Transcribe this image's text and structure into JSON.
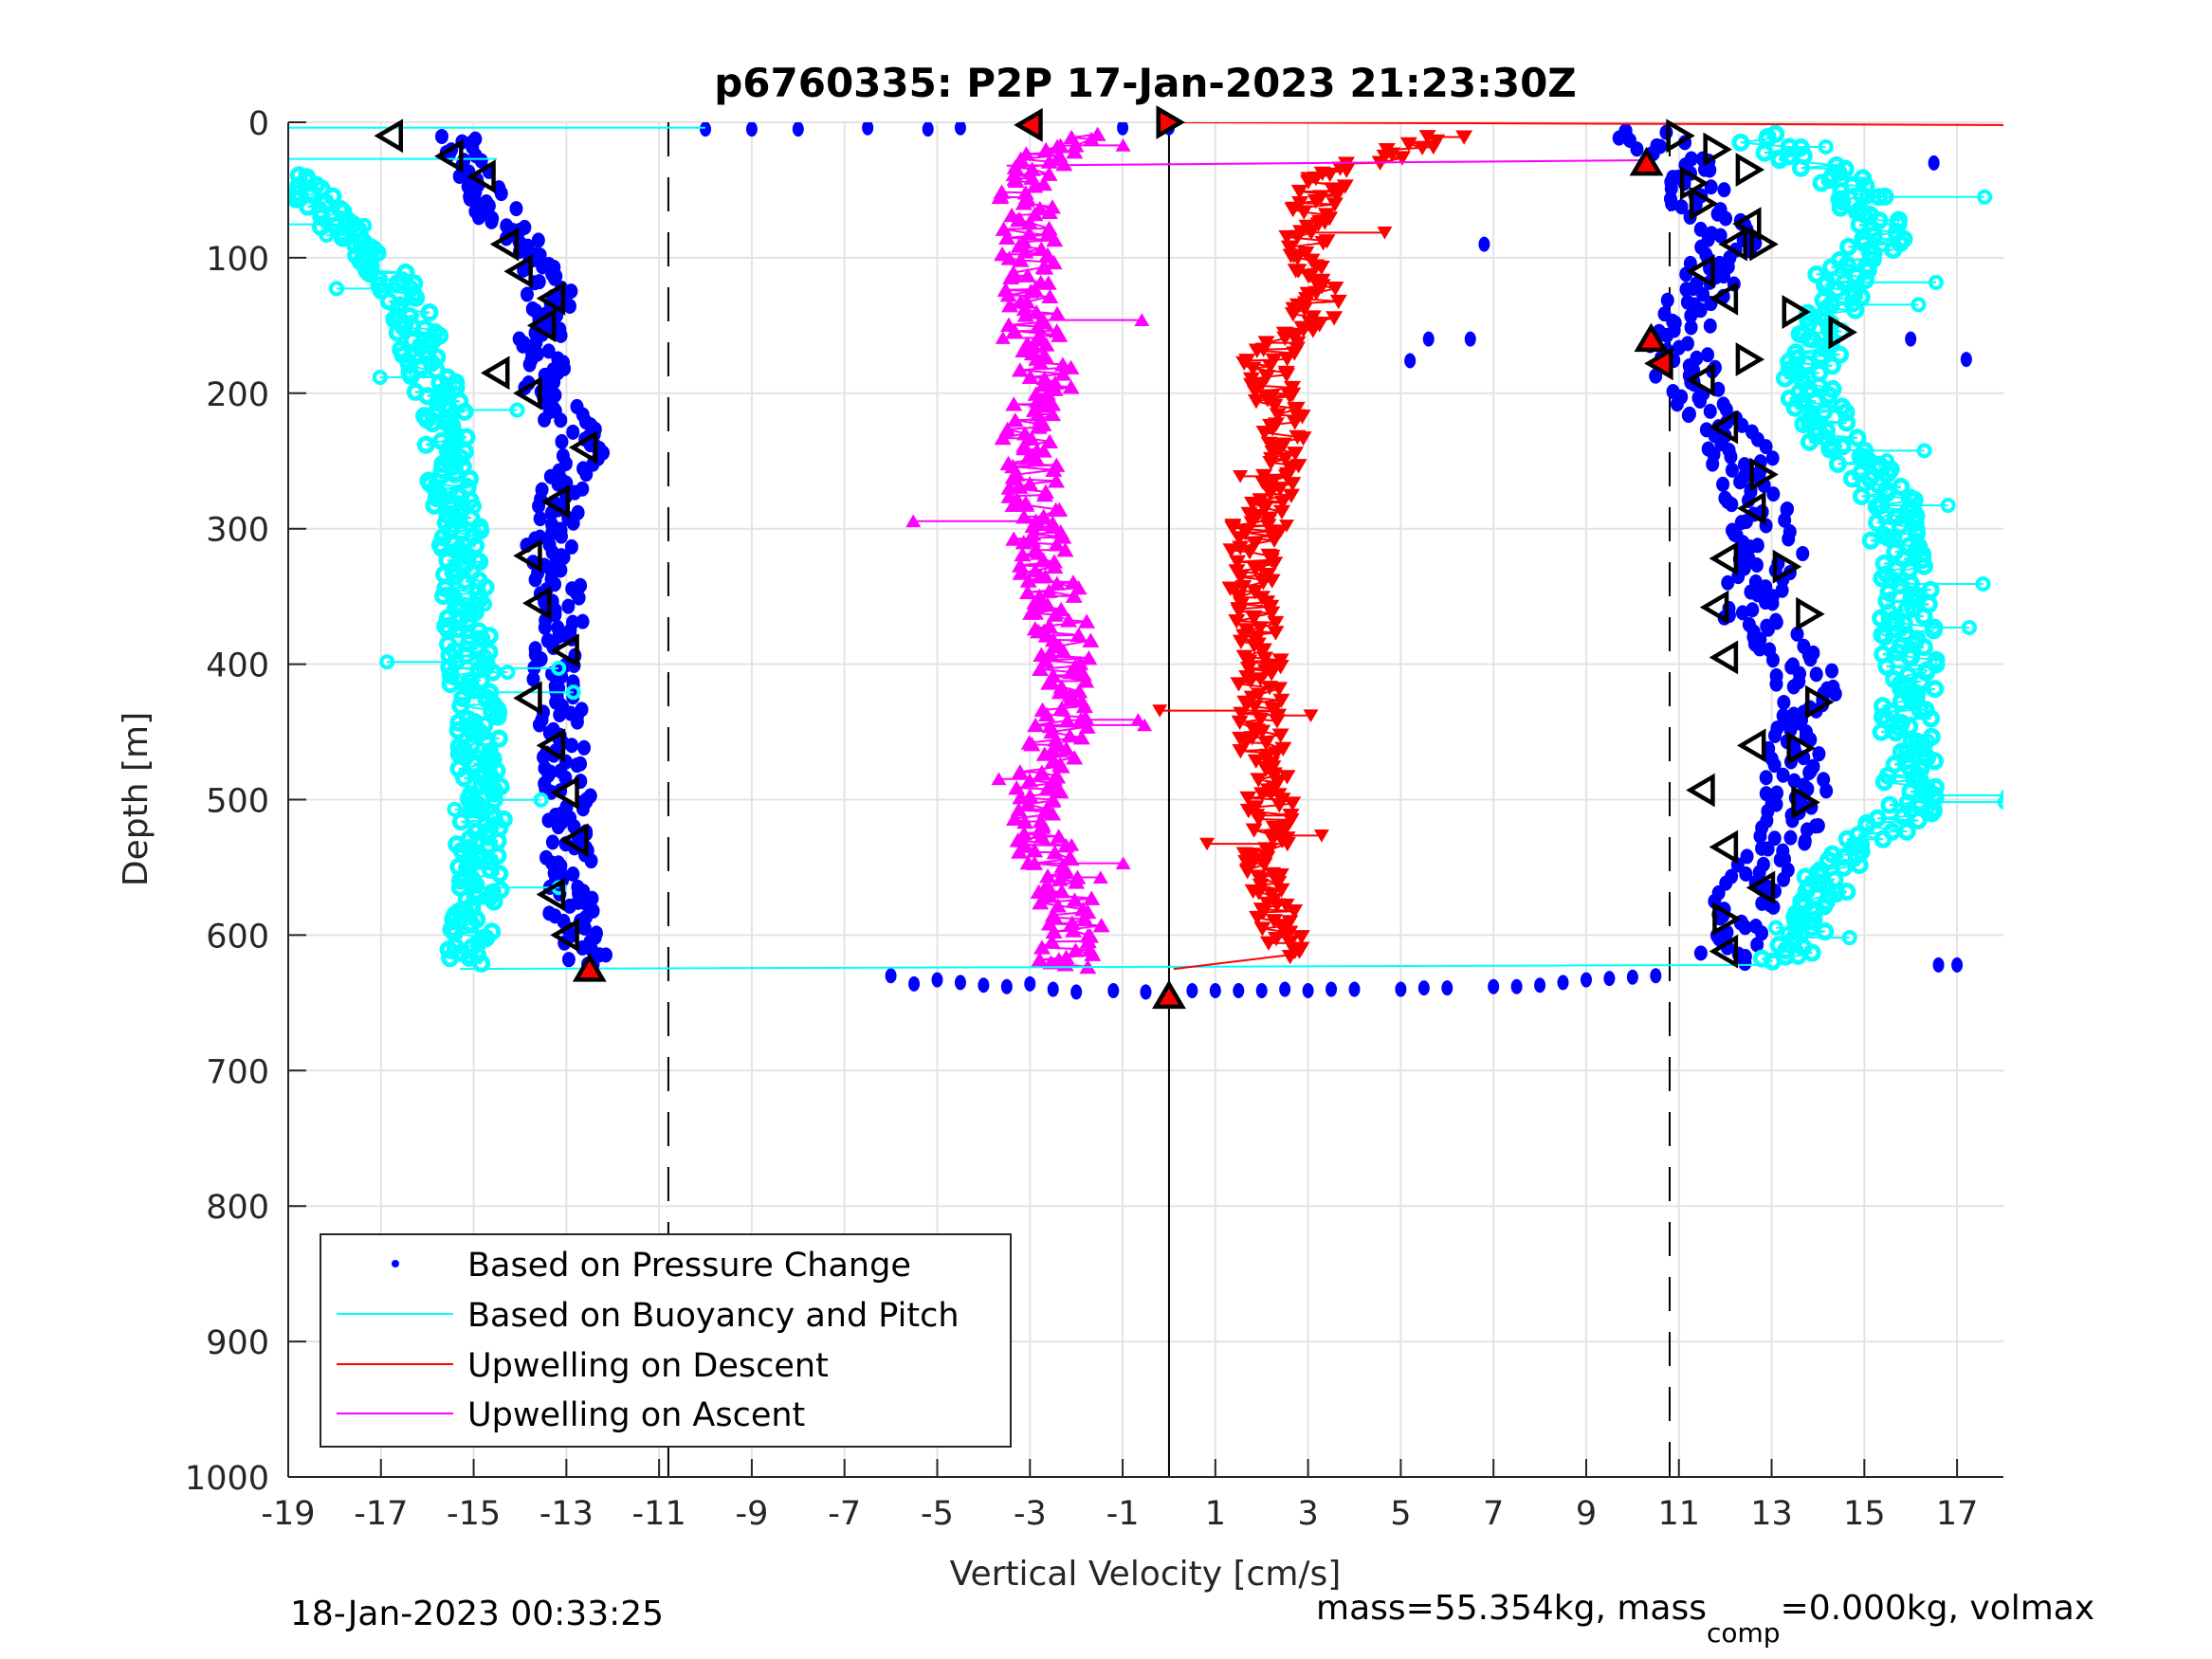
{
  "chart_data": {
    "type": "scatter",
    "title": "p6760335: P2P 17-Jan-2023 21:23:30Z",
    "xlabel": "Vertical Velocity [cm/s]",
    "ylabel": "Depth [m]",
    "xlim": [
      -19,
      18
    ],
    "ylim": [
      0,
      1000
    ],
    "y_reversed": true,
    "grid": true,
    "xticks": [
      -19,
      -17,
      -15,
      -13,
      -11,
      -9,
      -7,
      -5,
      -3,
      -1,
      1,
      3,
      5,
      7,
      9,
      11,
      13,
      15,
      17
    ],
    "yticks": [
      0,
      100,
      200,
      300,
      400,
      500,
      600,
      700,
      800,
      900,
      1000
    ],
    "reference_lines": [
      {
        "name": "zero",
        "x": 0,
        "style": "solid"
      },
      {
        "name": "descent-threshold",
        "x": -10.8,
        "style": "dashed"
      },
      {
        "name": "ascent-threshold",
        "x": 10.8,
        "style": "dashed"
      }
    ],
    "legend": {
      "placement": "bottom-left",
      "entries": [
        {
          "label": "Based on Pressure Change",
          "color": "#0000ff",
          "marker": "dot"
        },
        {
          "label": "Based on Buoyancy and Pitch",
          "color": "#00ffff",
          "marker": "line"
        },
        {
          "label": "Upwelling on Descent",
          "color": "#ff0000",
          "marker": "line"
        },
        {
          "label": "Upwelling on Ascent",
          "color": "#ff00ff",
          "marker": "line"
        }
      ]
    },
    "series": [
      {
        "name": "Pressure Change (descent)",
        "color": "#0000ff",
        "marker": "dot",
        "profile": [
          [
            10,
            -15.5
          ],
          [
            50,
            -14.8
          ],
          [
            90,
            -14.0
          ],
          [
            130,
            -13.3
          ],
          [
            170,
            -13.6
          ],
          [
            200,
            -13.4
          ],
          [
            240,
            -12.6
          ],
          [
            280,
            -13.2
          ],
          [
            320,
            -13.4
          ],
          [
            360,
            -13.0
          ],
          [
            400,
            -13.3
          ],
          [
            440,
            -13.1
          ],
          [
            480,
            -13.0
          ],
          [
            520,
            -12.9
          ],
          [
            560,
            -13.0
          ],
          [
            600,
            -12.8
          ],
          [
            625,
            -12.4
          ]
        ],
        "spread": 0.5
      },
      {
        "name": "Buoyancy and Pitch (descent)",
        "color": "#00ffff",
        "marker": "circle-line",
        "profile": [
          [
            40,
            -18.8
          ],
          [
            70,
            -18.2
          ],
          [
            100,
            -17.0
          ],
          [
            140,
            -16.3
          ],
          [
            180,
            -16.0
          ],
          [
            220,
            -15.6
          ],
          [
            260,
            -15.5
          ],
          [
            300,
            -15.3
          ],
          [
            340,
            -15.2
          ],
          [
            380,
            -15.1
          ],
          [
            420,
            -15.0
          ],
          [
            460,
            -14.9
          ],
          [
            500,
            -14.8
          ],
          [
            540,
            -14.9
          ],
          [
            580,
            -14.9
          ],
          [
            620,
            -15.3
          ]
        ],
        "spread": 0.5
      },
      {
        "name": "Pressure Change (ascent)",
        "color": "#0000ff",
        "marker": "dot",
        "profile": [
          [
            620,
            12.0
          ],
          [
            590,
            12.3
          ],
          [
            560,
            12.6
          ],
          [
            520,
            13.5
          ],
          [
            480,
            13.5
          ],
          [
            440,
            13.8
          ],
          [
            400,
            13.6
          ],
          [
            360,
            12.5
          ],
          [
            320,
            13.0
          ],
          [
            280,
            12.6
          ],
          [
            240,
            12.3
          ],
          [
            200,
            11.3
          ],
          [
            170,
            11.0
          ],
          [
            130,
            11.4
          ],
          [
            90,
            12.0
          ],
          [
            60,
            11.5
          ],
          [
            30,
            11.2
          ],
          [
            5,
            10.0
          ]
        ],
        "spread": 0.7
      },
      {
        "name": "Buoyancy and Pitch (ascent)",
        "color": "#00ffff",
        "marker": "circle-line",
        "profile": [
          [
            620,
            13.3
          ],
          [
            580,
            14.0
          ],
          [
            540,
            14.5
          ],
          [
            510,
            16.0
          ],
          [
            470,
            16.0
          ],
          [
            430,
            15.9
          ],
          [
            390,
            16.0
          ],
          [
            350,
            15.9
          ],
          [
            310,
            15.6
          ],
          [
            270,
            15.5
          ],
          [
            230,
            14.2
          ],
          [
            190,
            13.8
          ],
          [
            150,
            14.2
          ],
          [
            110,
            14.5
          ],
          [
            80,
            15.5
          ],
          [
            40,
            14.5
          ],
          [
            10,
            12.5
          ]
        ],
        "spread": 0.6
      },
      {
        "name": "Upwelling on Descent",
        "color": "#ff0000",
        "marker": "triangle-down",
        "profile": [
          [
            10,
            6.0
          ],
          [
            40,
            3.5
          ],
          [
            70,
            3.0
          ],
          [
            100,
            3.0
          ],
          [
            140,
            3.2
          ],
          [
            180,
            2.0
          ],
          [
            220,
            2.5
          ],
          [
            260,
            2.4
          ],
          [
            300,
            1.8
          ],
          [
            340,
            1.8
          ],
          [
            380,
            2.0
          ],
          [
            420,
            2.0
          ],
          [
            460,
            2.0
          ],
          [
            500,
            2.2
          ],
          [
            540,
            2.1
          ],
          [
            580,
            2.3
          ],
          [
            615,
            2.5
          ]
        ],
        "spread": 0.5
      },
      {
        "name": "Upwelling on Ascent",
        "color": "#ff00ff",
        "marker": "triangle-up",
        "profile": [
          [
            625,
            -2.3
          ],
          [
            590,
            -2.0
          ],
          [
            550,
            -2.6
          ],
          [
            510,
            -2.8
          ],
          [
            470,
            -2.6
          ],
          [
            430,
            -2.2
          ],
          [
            390,
            -2.2
          ],
          [
            350,
            -2.5
          ],
          [
            310,
            -2.8
          ],
          [
            270,
            -2.9
          ],
          [
            230,
            -3.0
          ],
          [
            190,
            -2.6
          ],
          [
            150,
            -2.9
          ],
          [
            110,
            -3.0
          ],
          [
            70,
            -3.0
          ],
          [
            40,
            -3.2
          ],
          [
            10,
            -2.0
          ]
        ],
        "spread": 0.6
      },
      {
        "name": "Bottom turn (pressure change)",
        "color": "#0000ff",
        "marker": "dot",
        "points": [
          [
            -6.0,
            630
          ],
          [
            -5.5,
            636
          ],
          [
            -5.0,
            633
          ],
          [
            -4.5,
            635
          ],
          [
            -4.0,
            637
          ],
          [
            -3.5,
            638
          ],
          [
            -3.0,
            636
          ],
          [
            -2.5,
            640
          ],
          [
            -2.0,
            642
          ],
          [
            -1.2,
            641
          ],
          [
            -0.5,
            642
          ],
          [
            0.5,
            641
          ],
          [
            1.0,
            641
          ],
          [
            1.5,
            641
          ],
          [
            2.0,
            641
          ],
          [
            2.5,
            640
          ],
          [
            3.0,
            641
          ],
          [
            3.5,
            640
          ],
          [
            4.0,
            640
          ],
          [
            5.0,
            640
          ],
          [
            5.5,
            639
          ],
          [
            6.0,
            639
          ],
          [
            7.0,
            638
          ],
          [
            7.5,
            638
          ],
          [
            8.0,
            637
          ],
          [
            8.5,
            635
          ],
          [
            9.0,
            633
          ],
          [
            9.5,
            632
          ],
          [
            10.0,
            631
          ],
          [
            10.5,
            630
          ]
        ]
      },
      {
        "name": "Isolated pressure-change points",
        "color": "#0000ff",
        "marker": "dot",
        "points": [
          [
            -10.0,
            5
          ],
          [
            -9.0,
            5
          ],
          [
            -8.0,
            5
          ],
          [
            -6.5,
            4
          ],
          [
            -5.2,
            5
          ],
          [
            -4.5,
            4
          ],
          [
            -1.0,
            4
          ],
          [
            0.0,
            4
          ],
          [
            6.8,
            90
          ],
          [
            5.6,
            160
          ],
          [
            6.5,
            160
          ],
          [
            5.2,
            176
          ],
          [
            16.5,
            30
          ],
          [
            16.6,
            622
          ],
          [
            17.0,
            622
          ],
          [
            16.0,
            160
          ],
          [
            17.2,
            175
          ]
        ]
      }
    ],
    "markers": {
      "turn_markers_red": [
        [
          -3.0,
          2,
          "left"
        ],
        [
          0,
          0,
          "right"
        ],
        [
          10.3,
          30,
          "up"
        ],
        [
          10.4,
          160,
          "up"
        ],
        [
          10.6,
          178,
          "left"
        ],
        [
          -12.5,
          625,
          "up"
        ],
        [
          0,
          645,
          "up"
        ]
      ],
      "segment_markers_outline": [
        [
          -16.8,
          10,
          "left"
        ],
        [
          -15.5,
          25,
          "left"
        ],
        [
          -14.8,
          40,
          "left"
        ],
        [
          -14.3,
          90,
          "left"
        ],
        [
          -14.0,
          110,
          "left"
        ],
        [
          -13.3,
          130,
          "left"
        ],
        [
          -13.5,
          150,
          "left"
        ],
        [
          -14.5,
          185,
          "left"
        ],
        [
          -13.8,
          200,
          "left"
        ],
        [
          -12.6,
          240,
          "left"
        ],
        [
          -13.2,
          280,
          "left"
        ],
        [
          -13.8,
          320,
          "left"
        ],
        [
          -13.6,
          355,
          "left"
        ],
        [
          -13.0,
          390,
          "left"
        ],
        [
          -13.8,
          425,
          "left"
        ],
        [
          -13.3,
          460,
          "left"
        ],
        [
          -13.0,
          495,
          "left"
        ],
        [
          -12.8,
          530,
          "left"
        ],
        [
          -13.3,
          570,
          "left"
        ],
        [
          -13.0,
          600,
          "left"
        ],
        [
          11.0,
          10,
          "right"
        ],
        [
          11.8,
          20,
          "right"
        ],
        [
          12.5,
          35,
          "right"
        ],
        [
          11.3,
          45,
          "right"
        ],
        [
          11.5,
          60,
          "right"
        ],
        [
          12.5,
          75,
          "left"
        ],
        [
          12.2,
          90,
          "left"
        ],
        [
          12.8,
          90,
          "right"
        ],
        [
          11.5,
          110,
          "left"
        ],
        [
          12.0,
          130,
          "left"
        ],
        [
          13.5,
          140,
          "right"
        ],
        [
          14.5,
          155,
          "right"
        ],
        [
          12.5,
          175,
          "right"
        ],
        [
          11.5,
          190,
          "left"
        ],
        [
          12.0,
          225,
          "left"
        ],
        [
          12.8,
          260,
          "right"
        ],
        [
          12.6,
          285,
          "left"
        ],
        [
          12.0,
          322,
          "left"
        ],
        [
          13.3,
          328,
          "right"
        ],
        [
          11.8,
          358,
          "left"
        ],
        [
          13.8,
          363,
          "right"
        ],
        [
          12.0,
          395,
          "left"
        ],
        [
          14.0,
          428,
          "right"
        ],
        [
          12.6,
          460,
          "left"
        ],
        [
          13.6,
          462,
          "right"
        ],
        [
          11.5,
          493,
          "left"
        ],
        [
          13.7,
          502,
          "right"
        ],
        [
          12.0,
          535,
          "left"
        ],
        [
          12.8,
          565,
          "left"
        ],
        [
          12.0,
          588,
          "right"
        ],
        [
          12.0,
          612,
          "left"
        ]
      ]
    }
  },
  "footer": {
    "timestamp": "18-Jan-2023 00:33:25",
    "mass_text": "mass=55.354kg, mass",
    "mass_sub": "comp",
    "mass_rest": "=0.000kg, volmax"
  }
}
